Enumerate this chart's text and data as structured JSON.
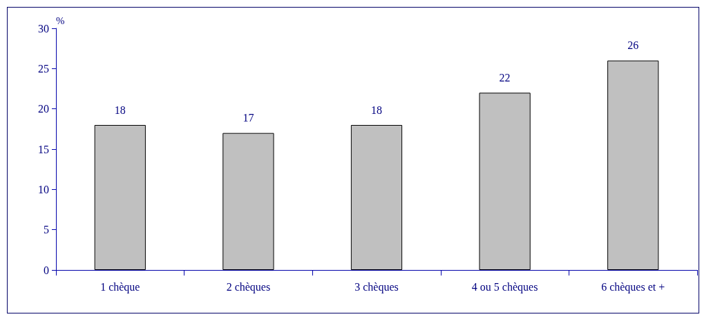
{
  "chart_data": {
    "type": "bar",
    "ylabel": "%",
    "categories": [
      "1 chèque",
      "2 chèques",
      "3 chèques",
      "4 ou 5 chèques",
      "6 chèques et +"
    ],
    "values": [
      18,
      17,
      18,
      22,
      26
    ],
    "color": "#c0c0c0",
    "ylim": [
      0,
      30
    ],
    "yticks": [
      0,
      5,
      10,
      15,
      20,
      25,
      30
    ],
    "grid": false,
    "data_labels": true
  }
}
